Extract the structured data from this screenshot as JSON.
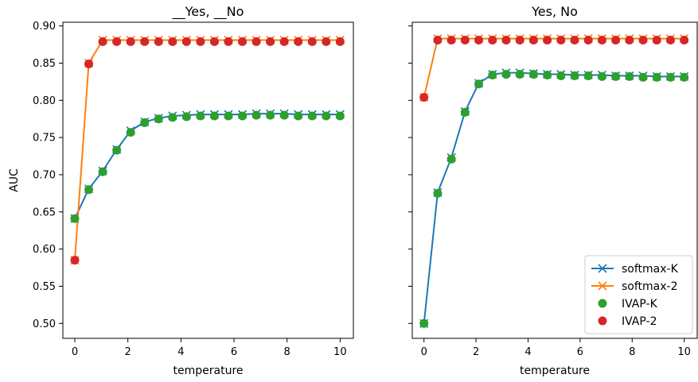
{
  "chart_data": [
    {
      "type": "line",
      "title": "__Yes, __No",
      "xlabel": "temperature",
      "ylabel": "AUC",
      "xlim": [
        -0.45,
        10.5
      ],
      "ylim": [
        0.48,
        0.905
      ],
      "xticks": [
        "0",
        "2",
        "4",
        "6",
        "8",
        "10"
      ],
      "yticks": [
        "0.50",
        "0.55",
        "0.60",
        "0.65",
        "0.70",
        "0.75",
        "0.80",
        "0.85",
        "0.90"
      ],
      "x": [
        0,
        0.526,
        1.053,
        1.579,
        2.105,
        2.632,
        3.158,
        3.684,
        4.211,
        4.737,
        5.263,
        5.789,
        6.316,
        6.842,
        7.368,
        7.895,
        8.421,
        8.947,
        9.474,
        10
      ],
      "series": [
        {
          "name": "softmax-K",
          "color": "#1f77b4",
          "style": "line-x",
          "values": [
            0.641,
            0.681,
            0.705,
            0.734,
            0.759,
            0.771,
            0.776,
            0.779,
            0.78,
            0.781,
            0.781,
            0.781,
            0.781,
            0.782,
            0.782,
            0.782,
            0.781,
            0.781,
            0.781,
            0.781
          ]
        },
        {
          "name": "softmax-2",
          "color": "#ff7f0e",
          "style": "line-x",
          "values": [
            0.585,
            0.85,
            0.881,
            0.881,
            0.881,
            0.881,
            0.881,
            0.881,
            0.881,
            0.881,
            0.881,
            0.881,
            0.881,
            0.881,
            0.881,
            0.881,
            0.881,
            0.881,
            0.881,
            0.881
          ]
        },
        {
          "name": "IVAP-K",
          "color": "#2ca02c",
          "style": "dot",
          "values": [
            0.641,
            0.68,
            0.704,
            0.733,
            0.757,
            0.77,
            0.775,
            0.777,
            0.778,
            0.779,
            0.779,
            0.779,
            0.779,
            0.78,
            0.78,
            0.78,
            0.779,
            0.779,
            0.779,
            0.779
          ]
        },
        {
          "name": "IVAP-2",
          "color": "#d62728",
          "style": "dot",
          "values": [
            0.585,
            0.849,
            0.879,
            0.879,
            0.879,
            0.879,
            0.879,
            0.879,
            0.879,
            0.879,
            0.879,
            0.879,
            0.879,
            0.879,
            0.879,
            0.879,
            0.879,
            0.879,
            0.879,
            0.879
          ]
        }
      ]
    },
    {
      "type": "line",
      "title": "Yes, No",
      "xlabel": "temperature",
      "ylabel": "",
      "xlim": [
        -0.45,
        10.5
      ],
      "ylim": [
        0.48,
        0.905
      ],
      "xticks": [
        "0",
        "2",
        "4",
        "6",
        "8",
        "10"
      ],
      "yticks": [],
      "legend": "lower-right",
      "x": [
        0,
        0.526,
        1.053,
        1.579,
        2.105,
        2.632,
        3.158,
        3.684,
        4.211,
        4.737,
        5.263,
        5.789,
        6.316,
        6.842,
        7.368,
        7.895,
        8.421,
        8.947,
        9.474,
        10
      ],
      "series": [
        {
          "name": "softmax-K",
          "color": "#1f77b4",
          "style": "line-x",
          "values": [
            0.5,
            0.676,
            0.723,
            0.785,
            0.823,
            0.835,
            0.837,
            0.837,
            0.836,
            0.835,
            0.835,
            0.834,
            0.834,
            0.834,
            0.833,
            0.833,
            0.833,
            0.832,
            0.832,
            0.832
          ]
        },
        {
          "name": "softmax-2",
          "color": "#ff7f0e",
          "style": "line-x",
          "values": [
            0.804,
            0.883,
            0.883,
            0.883,
            0.883,
            0.883,
            0.883,
            0.883,
            0.883,
            0.883,
            0.883,
            0.883,
            0.883,
            0.883,
            0.883,
            0.883,
            0.883,
            0.883,
            0.883,
            0.883
          ]
        },
        {
          "name": "IVAP-K",
          "color": "#2ca02c",
          "style": "dot",
          "values": [
            0.5,
            0.675,
            0.721,
            0.784,
            0.822,
            0.834,
            0.835,
            0.835,
            0.835,
            0.834,
            0.833,
            0.833,
            0.833,
            0.832,
            0.832,
            0.832,
            0.831,
            0.831,
            0.831,
            0.831
          ]
        },
        {
          "name": "IVAP-2",
          "color": "#d62728",
          "style": "dot",
          "values": [
            0.804,
            0.881,
            0.881,
            0.881,
            0.881,
            0.881,
            0.881,
            0.881,
            0.881,
            0.881,
            0.881,
            0.881,
            0.881,
            0.881,
            0.881,
            0.881,
            0.881,
            0.881,
            0.881,
            0.881
          ]
        }
      ]
    }
  ]
}
